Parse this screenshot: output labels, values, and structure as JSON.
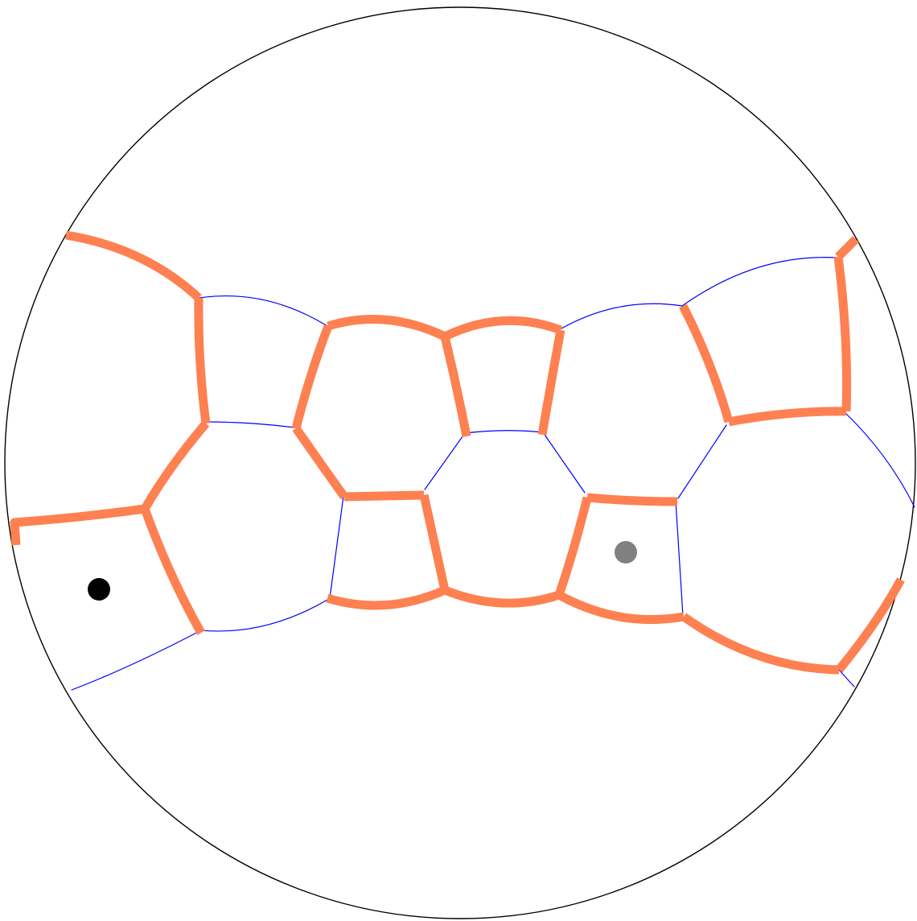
{
  "diagram": {
    "type": "hyperbolic-tiling-poincare-disk",
    "colors": {
      "boundary": "#000000",
      "thin_edge": "#0000ff",
      "thick_edge": "#ff8050",
      "marker_start": "#000000",
      "marker_end": "#808080"
    },
    "markers": [
      {
        "name": "start-marker",
        "color": "#000000"
      },
      {
        "name": "end-marker",
        "color": "#808080"
      }
    ]
  }
}
